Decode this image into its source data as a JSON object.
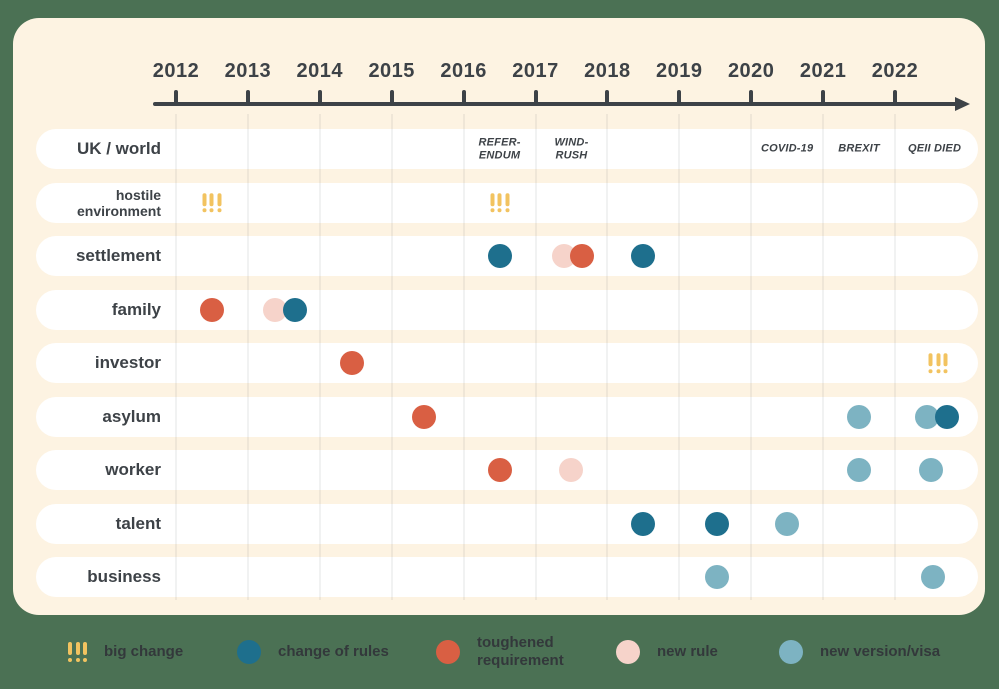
{
  "colors": {
    "background": "#4b7154",
    "card": "#fdf3e2",
    "row": "#ffffff",
    "text": "#3d4247",
    "big_change": "#f2c360",
    "change_of_rules": "#1e6f8d",
    "toughened_requirement": "#d95f43",
    "new_rule": "#f6d3ca",
    "new_version_visa": "#7db3c2"
  },
  "timeline": {
    "years": [
      2012,
      2013,
      2014,
      2015,
      2016,
      2017,
      2018,
      2019,
      2020,
      2021,
      2022
    ]
  },
  "chart_data": {
    "type": "timeline",
    "x_range": [
      2012,
      2023
    ],
    "x_ticks": [
      "2012",
      "2013",
      "2014",
      "2015",
      "2016",
      "2017",
      "2018",
      "2019",
      "2020",
      "2021",
      "2022"
    ],
    "rows": [
      {
        "label": "UK / world",
        "events": [],
        "annotations": [
          {
            "x": 2016.5,
            "text": "REFER-\nENDUM"
          },
          {
            "x": 2017.5,
            "text": "WIND-\nRUSH"
          },
          {
            "x": 2020.5,
            "text": "COVID-19"
          },
          {
            "x": 2021.5,
            "text": "BREXIT"
          },
          {
            "x": 2022.55,
            "text": "QEII DIED"
          }
        ]
      },
      {
        "label": "hostile environment",
        "events": [
          {
            "x": 2012.5,
            "type": "big_change"
          },
          {
            "x": 2016.5,
            "type": "big_change"
          }
        ]
      },
      {
        "label": "settlement",
        "events": [
          {
            "x": 2016.5,
            "type": "change_of_rules"
          },
          {
            "x": 2017.4,
            "type": "new_rule"
          },
          {
            "x": 2017.65,
            "type": "toughened_requirement"
          },
          {
            "x": 2018.5,
            "type": "change_of_rules"
          }
        ]
      },
      {
        "label": "family",
        "events": [
          {
            "x": 2012.5,
            "type": "toughened_requirement"
          },
          {
            "x": 2013.38,
            "type": "new_rule"
          },
          {
            "x": 2013.65,
            "type": "change_of_rules"
          }
        ]
      },
      {
        "label": "investor",
        "events": [
          {
            "x": 2014.45,
            "type": "toughened_requirement"
          },
          {
            "x": 2022.6,
            "type": "big_change"
          }
        ]
      },
      {
        "label": "asylum",
        "events": [
          {
            "x": 2015.45,
            "type": "toughened_requirement"
          },
          {
            "x": 2021.5,
            "type": "new_version_visa"
          },
          {
            "x": 2022.45,
            "type": "new_version_visa"
          },
          {
            "x": 2022.72,
            "type": "change_of_rules"
          }
        ]
      },
      {
        "label": "worker",
        "events": [
          {
            "x": 2016.5,
            "type": "toughened_requirement"
          },
          {
            "x": 2017.5,
            "type": "new_rule"
          },
          {
            "x": 2021.5,
            "type": "new_version_visa"
          },
          {
            "x": 2022.5,
            "type": "new_version_visa"
          }
        ]
      },
      {
        "label": "talent",
        "events": [
          {
            "x": 2018.5,
            "type": "change_of_rules"
          },
          {
            "x": 2019.52,
            "type": "change_of_rules"
          },
          {
            "x": 2020.5,
            "type": "new_version_visa"
          }
        ]
      },
      {
        "label": "business",
        "events": [
          {
            "x": 2019.52,
            "type": "new_version_visa"
          },
          {
            "x": 2022.53,
            "type": "new_version_visa"
          }
        ]
      }
    ]
  },
  "legend": [
    {
      "type": "big_change",
      "label": "big change"
    },
    {
      "type": "change_of_rules",
      "label": "change of rules"
    },
    {
      "type": "toughened_requirement",
      "label": "toughened requirement"
    },
    {
      "type": "new_rule",
      "label": "new rule"
    },
    {
      "type": "new_version_visa",
      "label": "new version/visa"
    }
  ]
}
